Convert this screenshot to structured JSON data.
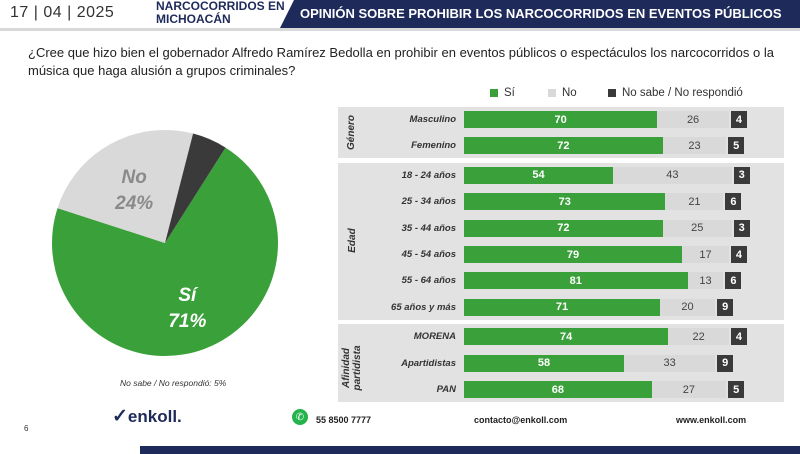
{
  "header": {
    "date": "17 | 04 | 2025",
    "topic": "NARCOCORRIDOS EN MICHOACÁN",
    "title": "OPINIÓN SOBRE PROHIBIR LOS NARCOCORRIDOS EN EVENTOS PÚBLICOS"
  },
  "question": "¿Cree que hizo bien el gobernador Alfredo Ramírez Bedolla en prohibir en eventos públicos o espectáculos los narcocorridos o la música que haga alusión a grupos criminales?",
  "colors": {
    "yes": "#3aa13a",
    "no": "#d9d9d9",
    "ns": "#3a3a3a",
    "brand": "#1e2a5a"
  },
  "chart_data": [
    {
      "type": "pie",
      "slices": [
        {
          "label": "Sí",
          "value": 71,
          "display": "71%"
        },
        {
          "label": "No",
          "value": 24,
          "display": "24%"
        },
        {
          "label": "No sabe / No respondió",
          "value": 5,
          "display": "5%"
        }
      ],
      "note": "No sabe / No respondió: 5%"
    },
    {
      "type": "bar",
      "stacked": true,
      "orientation": "horizontal",
      "legend": [
        "Sí",
        "No",
        "No sabe / No respondió"
      ],
      "legend_position": "top",
      "groups": [
        {
          "name": "Género",
          "rows": [
            {
              "label": "Masculino",
              "values": [
                70,
                26,
                4
              ]
            },
            {
              "label": "Femenino",
              "values": [
                72,
                23,
                5
              ]
            }
          ]
        },
        {
          "name": "Edad",
          "rows": [
            {
              "label": "18 - 24 años",
              "values": [
                54,
                43,
                3
              ]
            },
            {
              "label": "25 - 34 años",
              "values": [
                73,
                21,
                6
              ]
            },
            {
              "label": "35 - 44 años",
              "values": [
                72,
                25,
                3
              ]
            },
            {
              "label": "45 - 54 años",
              "values": [
                79,
                17,
                4
              ]
            },
            {
              "label": "55 - 64 años",
              "values": [
                81,
                13,
                6
              ]
            },
            {
              "label": "65  años y más",
              "values": [
                71,
                20,
                9
              ]
            }
          ]
        },
        {
          "name": "Afinidad partidista",
          "rows": [
            {
              "label": "MORENA",
              "values": [
                74,
                22,
                4
              ]
            },
            {
              "label": "Apartidistas",
              "values": [
                58,
                33,
                9
              ]
            },
            {
              "label": "PAN",
              "values": [
                68,
                27,
                5
              ]
            }
          ]
        }
      ]
    }
  ],
  "footer": {
    "page": "6",
    "logo": "enkoll.",
    "phone": "55 8500 7777",
    "email": "contacto@enkoll.com",
    "web": "www.enkoll.com"
  }
}
